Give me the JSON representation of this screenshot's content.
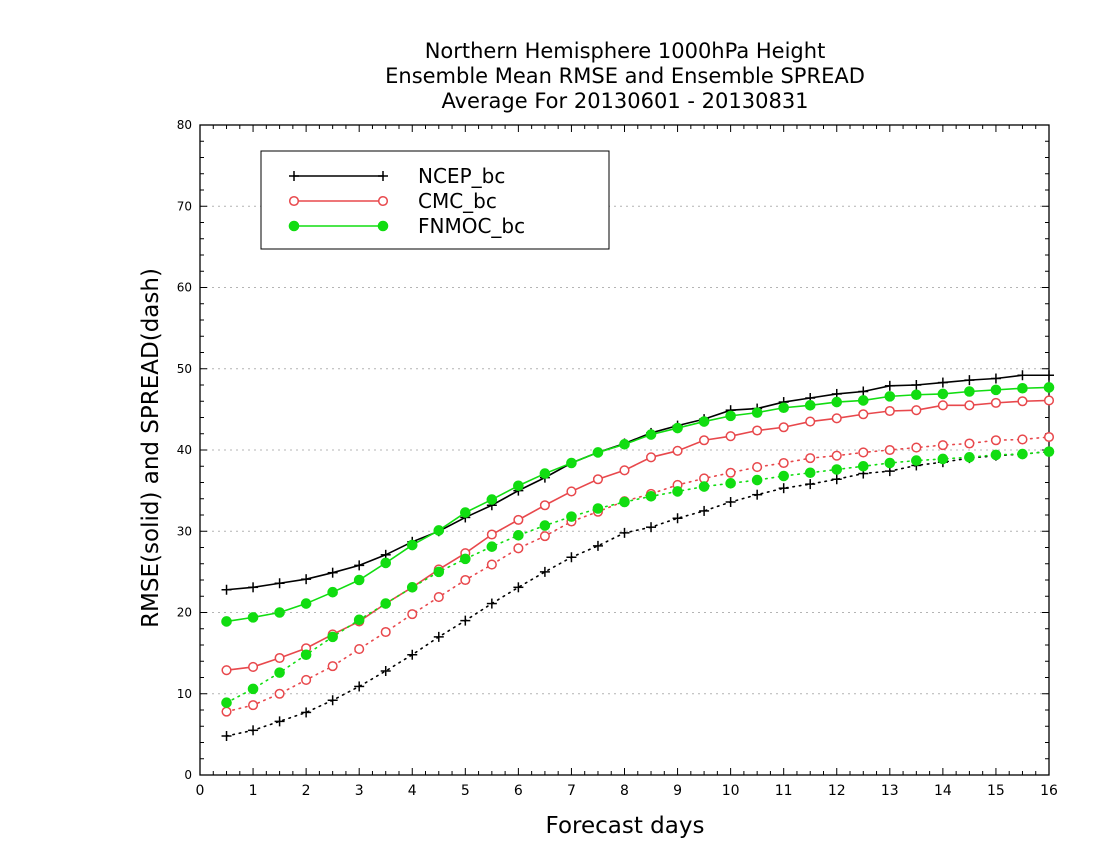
{
  "chart_data": {
    "type": "line",
    "title": [
      "Northern Hemisphere 1000hPa Height",
      "Ensemble Mean RMSE and Ensemble SPREAD",
      "Average For 20130601 - 20130831"
    ],
    "xlabel": "Forecast days",
    "ylabel": "RMSE(solid) and SPREAD(dash)",
    "xlim": [
      0,
      16
    ],
    "ylim": [
      0,
      80
    ],
    "xticks": [
      0,
      1,
      2,
      3,
      4,
      5,
      6,
      7,
      8,
      9,
      10,
      11,
      12,
      13,
      14,
      15,
      16
    ],
    "yticks": [
      0,
      10,
      20,
      30,
      40,
      50,
      60,
      70,
      80
    ],
    "grid": "horizontal dotted",
    "legend_position": "top-left",
    "x": [
      0.5,
      1,
      1.5,
      2,
      2.5,
      3,
      3.5,
      4,
      4.5,
      5,
      5.5,
      6,
      6.5,
      7,
      7.5,
      8,
      8.5,
      9,
      9.5,
      10,
      10.5,
      11,
      11.5,
      12,
      12.5,
      13,
      13.5,
      14,
      14.5,
      15,
      15.5,
      16
    ],
    "series": [
      {
        "name": "NCEP_bc",
        "color": "#000000",
        "marker": "plus",
        "rmse": [
          22.8,
          23.1,
          23.6,
          24.1,
          24.9,
          25.8,
          27.1,
          28.7,
          30.0,
          31.7,
          33.2,
          35.0,
          36.6,
          38.4,
          39.7,
          40.8,
          42.1,
          43.0,
          43.8,
          44.9,
          45.1,
          45.9,
          46.4,
          46.9,
          47.2,
          47.9,
          48.0,
          48.3,
          48.6,
          48.8,
          49.2,
          49.2
        ],
        "spread": [
          4.8,
          5.5,
          6.6,
          7.7,
          9.2,
          10.9,
          12.8,
          14.8,
          17.0,
          19.0,
          21.1,
          23.1,
          25.0,
          26.8,
          28.2,
          29.8,
          30.5,
          31.6,
          32.5,
          33.6,
          34.5,
          35.3,
          35.8,
          36.4,
          37.1,
          37.4,
          38.1,
          38.5,
          39.0,
          39.3,
          39.5,
          39.8
        ]
      },
      {
        "name": "CMC_bc",
        "color": "#e8484c",
        "marker": "open-circle",
        "rmse": [
          12.9,
          13.3,
          14.4,
          15.6,
          17.3,
          18.9,
          21.1,
          23.1,
          25.3,
          27.3,
          29.6,
          31.4,
          33.2,
          34.9,
          36.4,
          37.5,
          39.1,
          39.9,
          41.2,
          41.7,
          42.4,
          42.8,
          43.5,
          43.9,
          44.4,
          44.8,
          44.9,
          45.5,
          45.5,
          45.8,
          46.0,
          46.1
        ],
        "spread": [
          7.8,
          8.6,
          10.0,
          11.7,
          13.4,
          15.5,
          17.6,
          19.8,
          21.9,
          24.0,
          25.9,
          27.9,
          29.4,
          31.2,
          32.4,
          33.7,
          34.6,
          35.7,
          36.5,
          37.2,
          37.9,
          38.4,
          39.0,
          39.3,
          39.7,
          40.0,
          40.3,
          40.6,
          40.8,
          41.2,
          41.3,
          41.6
        ]
      },
      {
        "name": "FNMOC_bc",
        "color": "#11dd11",
        "marker": "filled-circle",
        "rmse": [
          18.9,
          19.4,
          20.0,
          21.1,
          22.5,
          24.0,
          26.1,
          28.3,
          30.1,
          32.3,
          33.9,
          35.6,
          37.1,
          38.4,
          39.7,
          40.7,
          41.9,
          42.7,
          43.5,
          44.2,
          44.6,
          45.2,
          45.5,
          45.9,
          46.1,
          46.6,
          46.8,
          46.9,
          47.2,
          47.4,
          47.6,
          47.7
        ],
        "spread": [
          8.9,
          10.6,
          12.6,
          14.8,
          17.0,
          19.1,
          21.1,
          23.1,
          25.0,
          26.6,
          28.1,
          29.5,
          30.7,
          31.8,
          32.8,
          33.6,
          34.3,
          34.9,
          35.5,
          35.9,
          36.3,
          36.8,
          37.2,
          37.6,
          38.0,
          38.4,
          38.7,
          38.9,
          39.1,
          39.4,
          39.5,
          39.8
        ]
      }
    ]
  }
}
